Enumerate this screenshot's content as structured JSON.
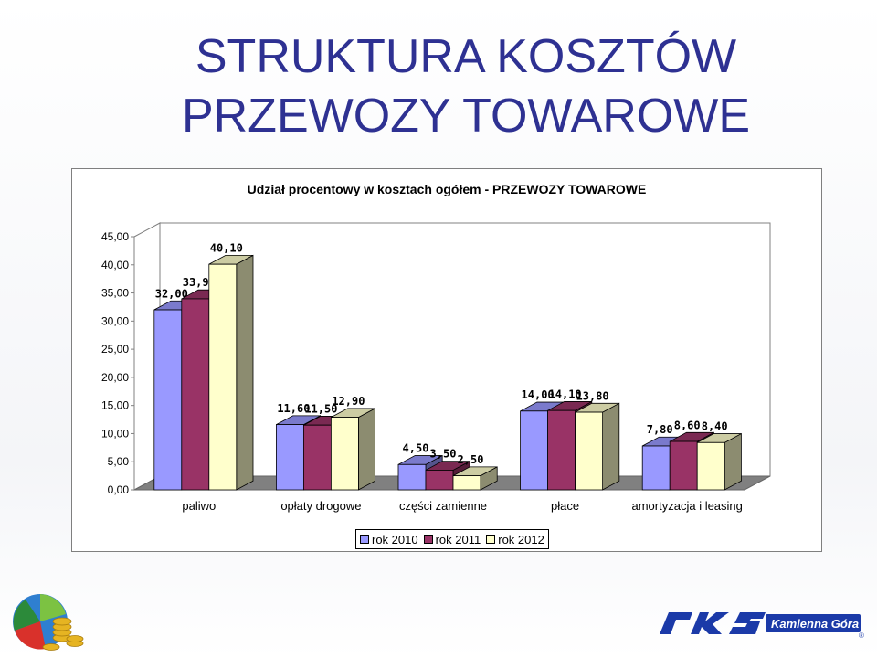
{
  "slide": {
    "title_line1": "STRUKTURA KOSZTÓW",
    "title_line2": "PRZEWOZY TOWAROWE"
  },
  "brand": {
    "logo_text": "PKS",
    "logo_subtitle": "Kamienna Góra",
    "registered": "®"
  },
  "chart_data": {
    "type": "bar",
    "title": "Udział procentowy w kosztach ogółem - PRZEWOZY TOWAROWE",
    "categories": [
      "paliwo",
      "opłaty drogowe",
      "części zamienne",
      "płace",
      "amortyzacja i leasing"
    ],
    "series": [
      {
        "name": "rok 2010",
        "color": "#9999ff",
        "values": [
          32.0,
          11.6,
          4.5,
          14.0,
          7.8
        ],
        "labels": [
          "32,00",
          "11,60",
          "4,50",
          "14,00",
          "7,80"
        ]
      },
      {
        "name": "rok 2011",
        "color": "#993366",
        "values": [
          33.96,
          11.5,
          3.5,
          14.1,
          8.6
        ],
        "labels": [
          "33,96",
          "11,50",
          "3,50",
          "14,10",
          "8,60"
        ]
      },
      {
        "name": "rok 2012",
        "color": "#ffffcc",
        "values": [
          40.1,
          12.9,
          2.5,
          13.8,
          8.4
        ],
        "labels": [
          "40,10",
          "12,90",
          "2,50",
          "13,80",
          "8,40"
        ]
      }
    ],
    "ylim": [
      0,
      45
    ],
    "yticks": [
      "0,00",
      "5,00",
      "10,00",
      "15,00",
      "20,00",
      "25,00",
      "30,00",
      "35,00",
      "40,00",
      "45,00"
    ],
    "grid": false,
    "legend_position": "bottom",
    "style": "3d-column"
  }
}
